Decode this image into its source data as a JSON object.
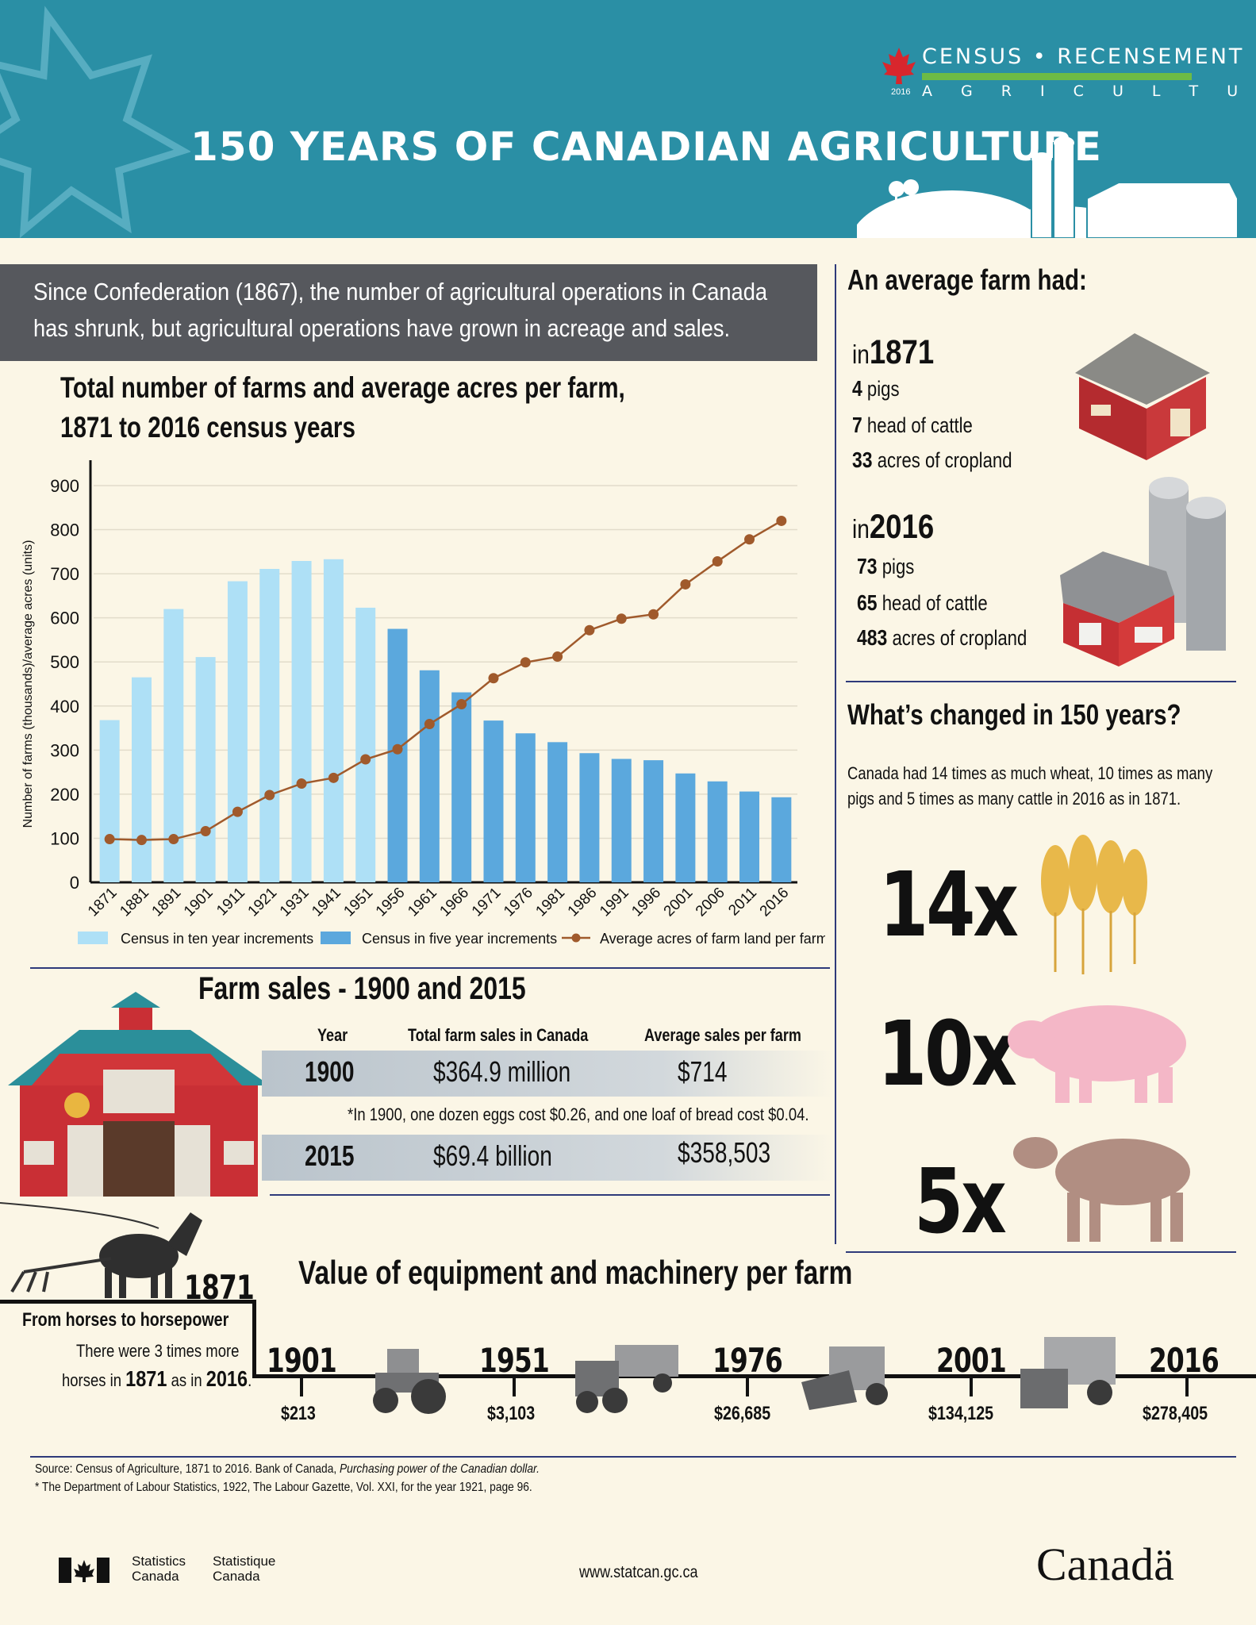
{
  "header": {
    "title": "150 YEARS OF CANADIAN AGRICULTURE",
    "census_logo": {
      "top": "CENSUS • RECENSEMENT",
      "year": "2016",
      "sub": "A G R I C U L T U R E"
    }
  },
  "intro": {
    "line1": "Since Confederation (1867), the number of agricultural operations in Canada",
    "line2": "has shrunk, but agricultural operations have grown in acreage and sales."
  },
  "chart_data": {
    "type": "bar",
    "title_line1": "Total number of farms and average acres per farm,",
    "title_line2": "1871 to 2016 census years",
    "ylabel": "Number of farms (thousands)/average acres (units)",
    "ylim": [
      0,
      900
    ],
    "yticks": [
      0,
      100,
      200,
      300,
      400,
      500,
      600,
      700,
      800,
      900
    ],
    "categories": [
      "1871",
      "1881",
      "1891",
      "1901",
      "1911",
      "1921",
      "1931",
      "1941",
      "1951",
      "1956",
      "1961",
      "1966",
      "1971",
      "1976",
      "1981",
      "1986",
      "1991",
      "1996",
      "2001",
      "2006",
      "2011",
      "2016"
    ],
    "series": [
      {
        "name": "Census in ten year increments",
        "kind": "bar",
        "color": "#aee0f6",
        "values": [
          368,
          465,
          620,
          511,
          683,
          711,
          729,
          733,
          623,
          null,
          null,
          null,
          null,
          null,
          null,
          null,
          null,
          null,
          null,
          null,
          null,
          null
        ]
      },
      {
        "name": "Census in five year increments",
        "kind": "bar",
        "color": "#5ba8dd",
        "values": [
          null,
          null,
          null,
          null,
          null,
          null,
          null,
          null,
          null,
          575,
          481,
          431,
          367,
          338,
          318,
          293,
          280,
          277,
          247,
          229,
          206,
          193
        ]
      },
      {
        "name": "Average acres of farm land per farm",
        "kind": "line",
        "color": "#a05a2c",
        "values": [
          98,
          96,
          98,
          116,
          160,
          198,
          224,
          237,
          279,
          302,
          359,
          404,
          463,
          499,
          512,
          572,
          598,
          608,
          676,
          728,
          778,
          820
        ]
      }
    ]
  },
  "average_farm": {
    "heading": "An average farm had:",
    "y1871": {
      "in": "in",
      "year": "1871",
      "stats": [
        {
          "num": "4",
          "label": "pigs"
        },
        {
          "num": "7",
          "label": "head of cattle"
        },
        {
          "num": "33",
          "label": "acres of cropland"
        }
      ]
    },
    "y2016": {
      "in": "in",
      "year": "2016",
      "stats": [
        {
          "num": "73",
          "label": "pigs"
        },
        {
          "num": "65",
          "label": "head of cattle"
        },
        {
          "num": "483",
          "label": "acres of cropland"
        }
      ]
    }
  },
  "changed": {
    "heading": "What’s changed in 150 years?",
    "text_line1": "Canada had 14 times as much wheat, 10 times as many",
    "text_line2": "pigs and 5 times as many cattle in 2016 as in 1871.",
    "wheat": "14x",
    "pigs": "10x",
    "cattle": "5x"
  },
  "sales": {
    "heading": "Farm sales - 1900 and 2015",
    "headers": [
      "Year",
      "Total farm sales in Canada",
      "Average sales per farm"
    ],
    "rows": [
      {
        "year": "1900",
        "total": "$364.9 million",
        "avg": "$714"
      },
      {
        "year": "2015",
        "total": "$69.4 billion",
        "avg": "$358,503"
      }
    ],
    "note": "*In 1900, one dozen eggs cost $0.26, and one loaf of bread cost $0.04."
  },
  "horses": {
    "year": "1871",
    "heading": "From horses to horsepower",
    "text_line1": "There were 3 times more",
    "text_pre": "horses in ",
    "text_y1": "1871",
    "text_mid": " as in ",
    "text_y2": "2016",
    "text_end": "."
  },
  "equipment": {
    "heading": "Value of equipment and machinery per farm",
    "points": [
      {
        "year": "1901",
        "value": "$213"
      },
      {
        "year": "1951",
        "value": "$3,103"
      },
      {
        "year": "1976",
        "value": "$26,685"
      },
      {
        "year": "2001",
        "value": "$134,125"
      },
      {
        "year": "2016",
        "value": "$278,405"
      }
    ]
  },
  "footer": {
    "source_pre": "Source: Census of Agriculture, 1871 to 2016. Bank of Canada, ",
    "source_italic": "Purchasing power of the Canadian dollar.",
    "source_note": "* The Department of Labour Statistics, 1922, The Labour Gazette, Vol. XXI, for the year 1921, page 96.",
    "statcan_en_1": "Statistics",
    "statcan_en_2": "Canada",
    "statcan_fr_1": "Statistique",
    "statcan_fr_2": "Canada",
    "url": "www.statcan.gc.ca",
    "wordmark": "Canadä"
  },
  "colors": {
    "header_bg": "#2a8fa5",
    "page_bg": "#fbf6e6",
    "intro_bg": "#56585d",
    "divider": "#2e3a7a"
  }
}
